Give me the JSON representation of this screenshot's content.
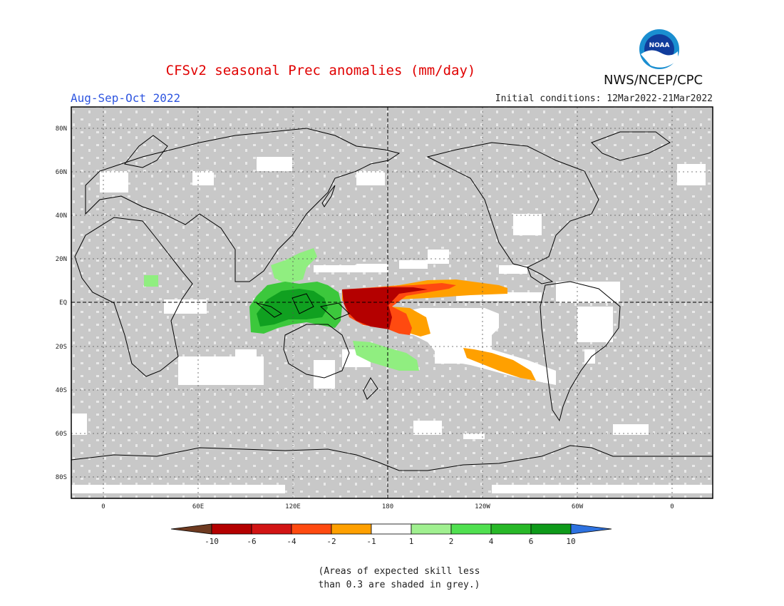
{
  "header": {
    "title": "CFSv2 seasonal Prec anomalies (mm/day)",
    "period": "Aug-Sep-Oct 2022",
    "initial_conditions": "Initial conditions: 12Mar2022-21Mar2022",
    "agency": "NWS/NCEP/CPC",
    "logo_text": "NOAA"
  },
  "map": {
    "lat_labels": [
      "80N",
      "60N",
      "40N",
      "20N",
      "EQ",
      "20S",
      "40S",
      "60S",
      "80S"
    ],
    "lon_labels": [
      "0",
      "60E",
      "120E",
      "180",
      "120W",
      "60W",
      "0"
    ],
    "colors": {
      "mask_grey": "#c8c8c8",
      "dark_red": "#b40000",
      "red": "#ff4a10",
      "orange": "#ffa000",
      "light_green": "#90ee80",
      "green": "#3cc83c",
      "dark_green": "#10a020"
    }
  },
  "colorbar": {
    "tick_labels": [
      "-10",
      "-6",
      "-4",
      "-2",
      "-1",
      "1",
      "2",
      "4",
      "6",
      "10"
    ],
    "colors": [
      "#6e3a20",
      "#b40000",
      "#d21414",
      "#ff4a10",
      "#ffa000",
      "#ffffff",
      "#a0f090",
      "#50e050",
      "#28b828",
      "#0e9a1a",
      "#2e72e0"
    ]
  },
  "note": {
    "line1": "(Areas of expected skill less",
    "line2": "than 0.3 are shaded in grey.)"
  }
}
